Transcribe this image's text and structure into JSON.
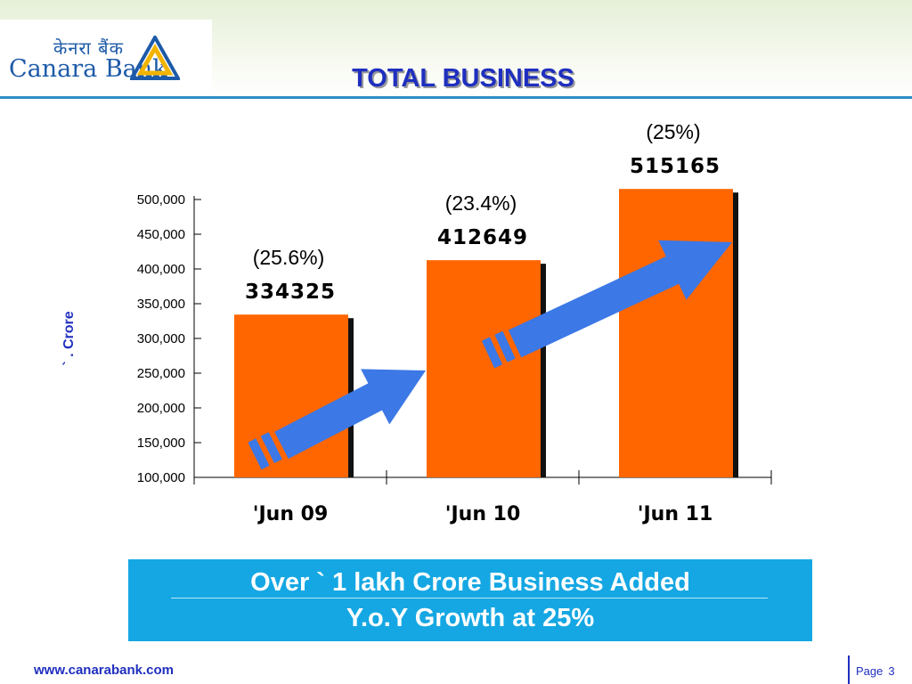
{
  "header": {
    "logo_hindi": "केनरा बैंक",
    "logo_english": "Canara Bank",
    "title": "TOTAL BUSINESS"
  },
  "colors": {
    "bar": "#ff6600",
    "bar_shadow": "#111111",
    "arrow": "#3c78e6",
    "header_rule": "#2e8ec6",
    "title": "#1f2fbf",
    "summary_bg": "#15a7e3"
  },
  "icons": {
    "logo": "canara-triangle-logo-icon",
    "growth": "growth-arrow-icon"
  },
  "chart_data": {
    "type": "bar",
    "categories": [
      "'Jun 09",
      "'Jun 10",
      "'Jun 11"
    ],
    "values": [
      334325,
      412649,
      515165
    ],
    "value_labels": [
      "334325",
      "412649",
      "515165"
    ],
    "growth_labels": [
      "(25.6%)",
      "(23.4%)",
      "(25%)"
    ],
    "ylabel": "` . Crore",
    "ylim": [
      100000,
      500000
    ],
    "yticks": [
      "100,000",
      "150,000",
      "200,000",
      "250,000",
      "300,000",
      "350,000",
      "400,000",
      "450,000",
      "500,000"
    ],
    "ytick_values": [
      100000,
      150000,
      200000,
      250000,
      300000,
      350000,
      400000,
      450000,
      500000
    ],
    "grid": false,
    "legend": "none"
  },
  "summary": {
    "line1": "Over ` 1 lakh Crore Business Added",
    "line2": "Y.o.Y Growth at 25%"
  },
  "footer": {
    "url": "www.canarabank.com",
    "page_label": "Page",
    "page_number": "3"
  }
}
